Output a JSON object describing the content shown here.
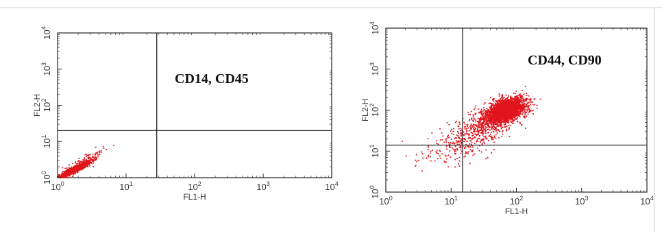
{
  "chart_data": [
    {
      "type": "scatter",
      "title": "",
      "annotation": "CD14, CD45",
      "xlabel": "FL1-H",
      "ylabel": "FL2-H",
      "xscale": "log",
      "yscale": "log",
      "xlim": [
        1,
        10000
      ],
      "ylim": [
        1,
        10000
      ],
      "x_ticks": [
        {
          "base": "10",
          "exp": "0"
        },
        {
          "base": "10",
          "exp": "1"
        },
        {
          "base": "10",
          "exp": "2"
        },
        {
          "base": "10",
          "exp": "3"
        },
        {
          "base": "10",
          "exp": "4"
        }
      ],
      "y_ticks": [
        {
          "base": "10",
          "exp": "0"
        },
        {
          "base": "10",
          "exp": "1"
        },
        {
          "base": "10",
          "exp": "2"
        },
        {
          "base": "10",
          "exp": "3"
        },
        {
          "base": "10",
          "exp": "4"
        }
      ],
      "quadrant_gate": {
        "x": 28,
        "y": 20
      },
      "point_color": "#e0141c",
      "series": [
        {
          "clusters": [
            {
              "center_x": 1.8,
              "center_y": 1.7,
              "spread_x_log": 0.1,
              "spread_y_log": 0.1,
              "correlation": 0.92,
              "count": 1800
            },
            {
              "center_x": 2.6,
              "center_y": 3.0,
              "spread_x_log": 0.14,
              "spread_y_log": 0.16,
              "correlation": 0.85,
              "count": 120
            }
          ]
        }
      ]
    },
    {
      "type": "scatter",
      "title": "",
      "annotation": "CD44, CD90",
      "xlabel": "FL1-H",
      "ylabel": "FL2-H",
      "xscale": "log",
      "yscale": "log",
      "xlim": [
        1,
        10000
      ],
      "ylim": [
        1,
        10000
      ],
      "x_ticks": [
        {
          "base": "10",
          "exp": "0"
        },
        {
          "base": "10",
          "exp": "1"
        },
        {
          "base": "10",
          "exp": "2"
        },
        {
          "base": "10",
          "exp": "3"
        },
        {
          "base": "10",
          "exp": "4"
        }
      ],
      "y_ticks": [
        {
          "base": "10",
          "exp": "0"
        },
        {
          "base": "10",
          "exp": "1"
        },
        {
          "base": "10",
          "exp": "2"
        },
        {
          "base": "10",
          "exp": "3"
        },
        {
          "base": "10",
          "exp": "4"
        }
      ],
      "quadrant_gate": {
        "x": 15,
        "y": 14
      },
      "point_color": "#e0141c",
      "series": [
        {
          "clusters": [
            {
              "center_x": 70,
              "center_y": 100,
              "spread_x_log": 0.15,
              "spread_y_log": 0.15,
              "correlation": 0.45,
              "count": 2600
            },
            {
              "center_x": 35,
              "center_y": 45,
              "spread_x_log": 0.25,
              "spread_y_log": 0.24,
              "correlation": 0.55,
              "count": 550
            },
            {
              "center_x": 12,
              "center_y": 12,
              "spread_x_log": 0.3,
              "spread_y_log": 0.22,
              "correlation": 0.4,
              "count": 160
            }
          ]
        }
      ]
    }
  ]
}
